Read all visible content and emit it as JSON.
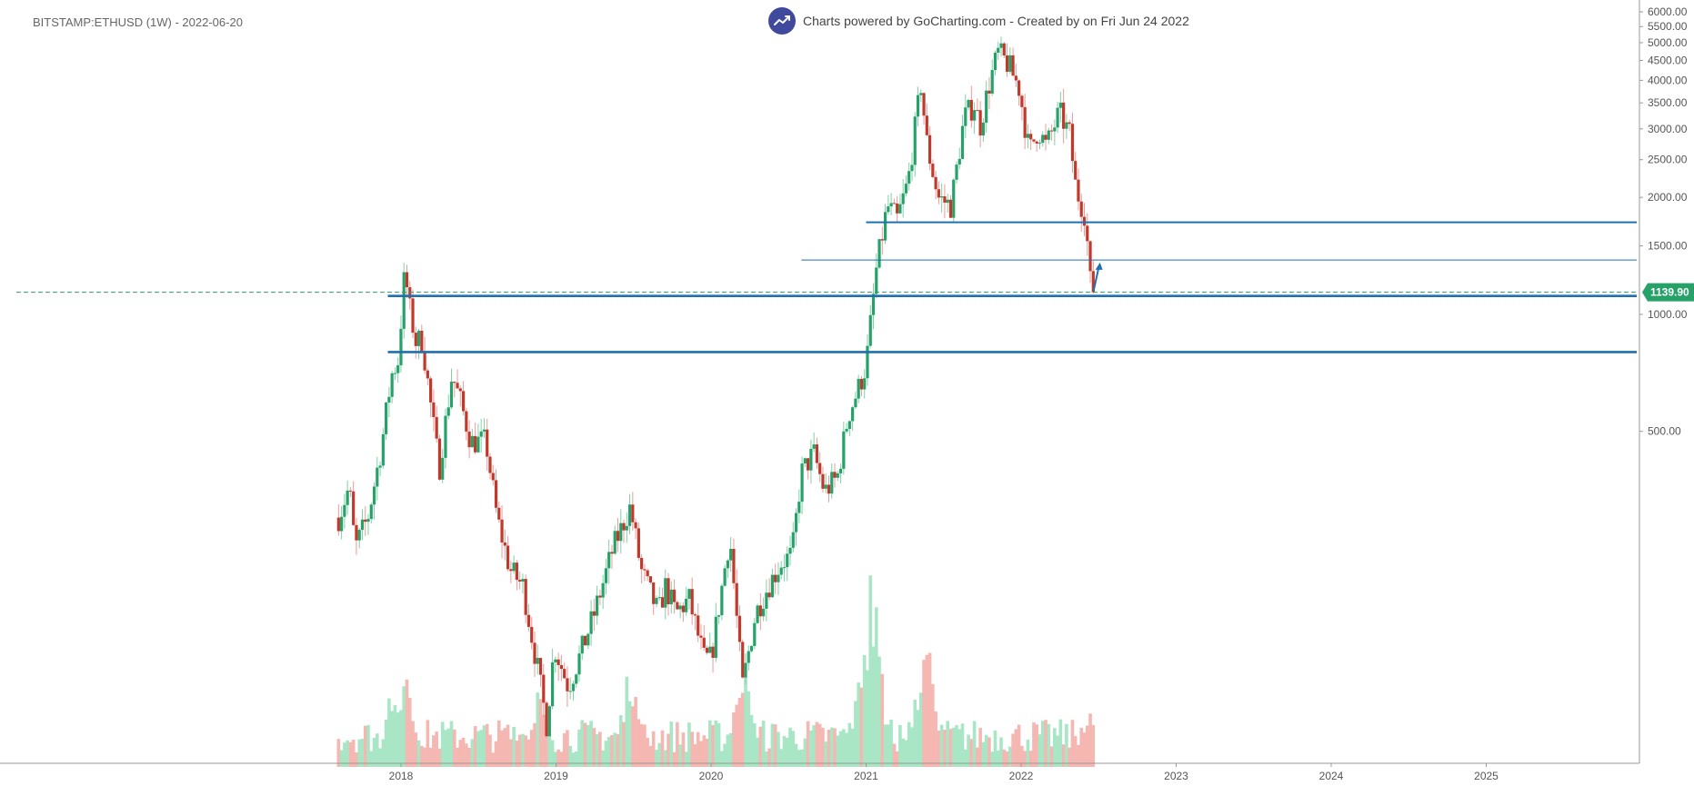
{
  "header": {
    "symbol_line": "BITSTAMP:ETHUSD (1W) - 2022-06-20",
    "attribution": "Charts powered by GoCharting.com - Created by  on Fri Jun 24 2022"
  },
  "icons": {
    "logo": "trend-up-icon"
  },
  "colors": {
    "up": "#26a269",
    "down": "#c0392b",
    "vol_up": "#a8e6c5",
    "vol_down": "#f5b7b1",
    "line_blue": "#1f6fb2",
    "price_tag": "#26a269",
    "dashed": "#26a269"
  },
  "chart_data": {
    "type": "candlestick",
    "scale": "log",
    "ylim": [
      0,
      6300
    ],
    "y_ticks": [
      500,
      1000,
      1500,
      2000,
      2500,
      3000,
      3500,
      4000,
      4500,
      5000,
      5500,
      6000
    ],
    "y_tick_labels": [
      "500.00",
      "1000.00",
      "1500.00",
      "2000.00",
      "2500.00",
      "3000.00",
      "3500.00",
      "4000.00",
      "4500.00",
      "5000.00",
      "5500.00",
      "6000.00"
    ],
    "x_ticks": [
      "2018",
      "2019",
      "2020",
      "2021",
      "2022",
      "2023",
      "2024",
      "2025"
    ],
    "last_price": 1139.9,
    "last_price_label": "1139.90",
    "horizontal_lines": [
      {
        "price": 1725,
        "from": "2021-01-01",
        "weight": "medium"
      },
      {
        "price": 1380,
        "from": "2020-08-01",
        "weight": "thin"
      },
      {
        "price": 1115,
        "from": "2017-12-01",
        "weight": "thick"
      },
      {
        "price": 800,
        "from": "2017-12-01",
        "weight": "thick"
      }
    ],
    "annotation_arrow": {
      "date": "2022-06-27",
      "from_price": 1150,
      "to_price": 1360
    },
    "anchors": [
      [
        "2017-08-07",
        300
      ],
      [
        "2017-09-01",
        360
      ],
      [
        "2017-09-15",
        250
      ],
      [
        "2017-10-15",
        300
      ],
      [
        "2017-11-15",
        450
      ],
      [
        "2017-12-10",
        700
      ],
      [
        "2017-12-25",
        760
      ],
      [
        "2018-01-10",
        1300
      ],
      [
        "2018-01-20",
        1050
      ],
      [
        "2018-02-05",
        850
      ],
      [
        "2018-02-20",
        860
      ],
      [
        "2018-03-15",
        550
      ],
      [
        "2018-04-01",
        400
      ],
      [
        "2018-05-01",
        700
      ],
      [
        "2018-05-20",
        600
      ],
      [
        "2018-06-15",
        470
      ],
      [
        "2018-07-20",
        470
      ],
      [
        "2018-08-15",
        300
      ],
      [
        "2018-09-15",
        220
      ],
      [
        "2018-10-15",
        200
      ],
      [
        "2018-11-20",
        120
      ],
      [
        "2018-12-10",
        88
      ],
      [
        "2018-12-28",
        140
      ],
      [
        "2019-01-30",
        110
      ],
      [
        "2019-03-01",
        135
      ],
      [
        "2019-04-01",
        170
      ],
      [
        "2019-05-15",
        250
      ],
      [
        "2019-06-25",
        320
      ],
      [
        "2019-07-20",
        220
      ],
      [
        "2019-08-30",
        170
      ],
      [
        "2019-09-15",
        200
      ],
      [
        "2019-10-10",
        170
      ],
      [
        "2019-11-10",
        185
      ],
      [
        "2019-12-15",
        130
      ],
      [
        "2020-01-01",
        130
      ],
      [
        "2020-02-14",
        270
      ],
      [
        "2020-03-15",
        110
      ],
      [
        "2020-04-15",
        170
      ],
      [
        "2020-05-15",
        200
      ],
      [
        "2020-06-15",
        230
      ],
      [
        "2020-07-10",
        240
      ],
      [
        "2020-08-01",
        390
      ],
      [
        "2020-08-30",
        440
      ],
      [
        "2020-09-25",
        350
      ],
      [
        "2020-10-25",
        380
      ],
      [
        "2020-11-20",
        550
      ],
      [
        "2020-12-15",
        650
      ],
      [
        "2021-01-01",
        740
      ],
      [
        "2021-01-25",
        1300
      ],
      [
        "2021-02-20",
        1900
      ],
      [
        "2021-03-15",
        1750
      ],
      [
        "2021-04-10",
        2200
      ],
      [
        "2021-05-10",
        3900
      ],
      [
        "2021-05-25",
        2700
      ],
      [
        "2021-06-20",
        2000
      ],
      [
        "2021-07-20",
        1900
      ],
      [
        "2021-08-20",
        3200
      ],
      [
        "2021-09-15",
        3500
      ],
      [
        "2021-09-25",
        3000
      ],
      [
        "2021-10-20",
        4000
      ],
      [
        "2021-11-08",
        4700
      ],
      [
        "2021-12-01",
        4400
      ],
      [
        "2021-12-28",
        3800
      ],
      [
        "2022-01-20",
        2600
      ],
      [
        "2022-02-10",
        3000
      ],
      [
        "2022-03-01",
        2700
      ],
      [
        "2022-04-01",
        3300
      ],
      [
        "2022-04-25",
        2900
      ],
      [
        "2022-05-10",
        2100
      ],
      [
        "2022-06-01",
        1800
      ],
      [
        "2022-06-13",
        1200
      ],
      [
        "2022-06-20",
        1140
      ]
    ],
    "volume_hotspots": [
      [
        "2017-12-15",
        0.33
      ],
      [
        "2018-01-15",
        0.35
      ],
      [
        "2018-11-20",
        0.3
      ],
      [
        "2019-06-25",
        0.4
      ],
      [
        "2020-03-15",
        0.43
      ],
      [
        "2020-12-25",
        0.42
      ],
      [
        "2021-01-15",
        0.75
      ],
      [
        "2021-05-20",
        0.55
      ],
      [
        "2022-06-13",
        0.22
      ]
    ]
  }
}
